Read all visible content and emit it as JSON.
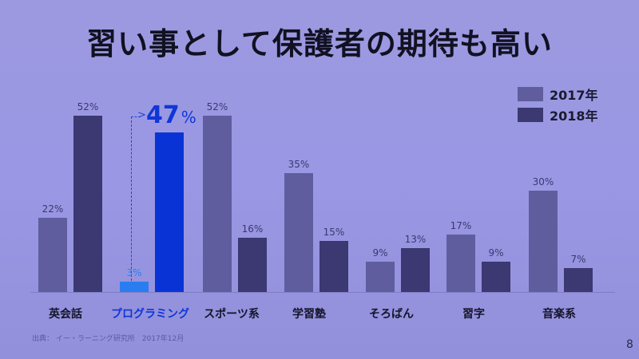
{
  "slide": {
    "title": "習い事として保護者の期待も高い",
    "source": "出典： イー・ラーニング研究所　2017年12月",
    "page_number": "8",
    "highlight": {
      "value": "47",
      "unit": "%"
    }
  },
  "legend": [
    {
      "label": "2017年",
      "color": "#5f5d9e"
    },
    {
      "label": "2018年",
      "color": "#3b3872"
    }
  ],
  "colors": {
    "bar_2017": "#5f5d9e",
    "bar_2018": "#3b3872",
    "highlight_2017": "#2a7df0",
    "highlight_2018": "#0a33d6",
    "highlight_text": "#1036d8"
  },
  "chart_data": {
    "type": "bar",
    "title": "習い事として保護者の期待も高い",
    "categories": [
      "英会話",
      "プログラミング",
      "スポーツ系",
      "学習塾",
      "そろばん",
      "習字",
      "音楽系"
    ],
    "series": [
      {
        "name": "2017年",
        "values": [
          22,
          3,
          52,
          35,
          9,
          17,
          30
        ]
      },
      {
        "name": "2018年",
        "values": [
          52,
          47,
          16,
          15,
          13,
          9,
          7
        ]
      }
    ],
    "labels": {
      "2017年": [
        "22%",
        "3%",
        "52%",
        "35%",
        "9%",
        "17%",
        "30%"
      ],
      "2018年": [
        "52%",
        "47%",
        "16%",
        "15%",
        "13%",
        "9%",
        "7%"
      ]
    },
    "xlabel": "",
    "ylabel": "",
    "ylim": [
      0,
      55
    ],
    "grid": false,
    "legend_position": "top-right",
    "annotations": [
      "プログラミング 3% → 47% (highlighted)"
    ],
    "source": "出典： イー・ラーニング研究所　2017年12月"
  }
}
